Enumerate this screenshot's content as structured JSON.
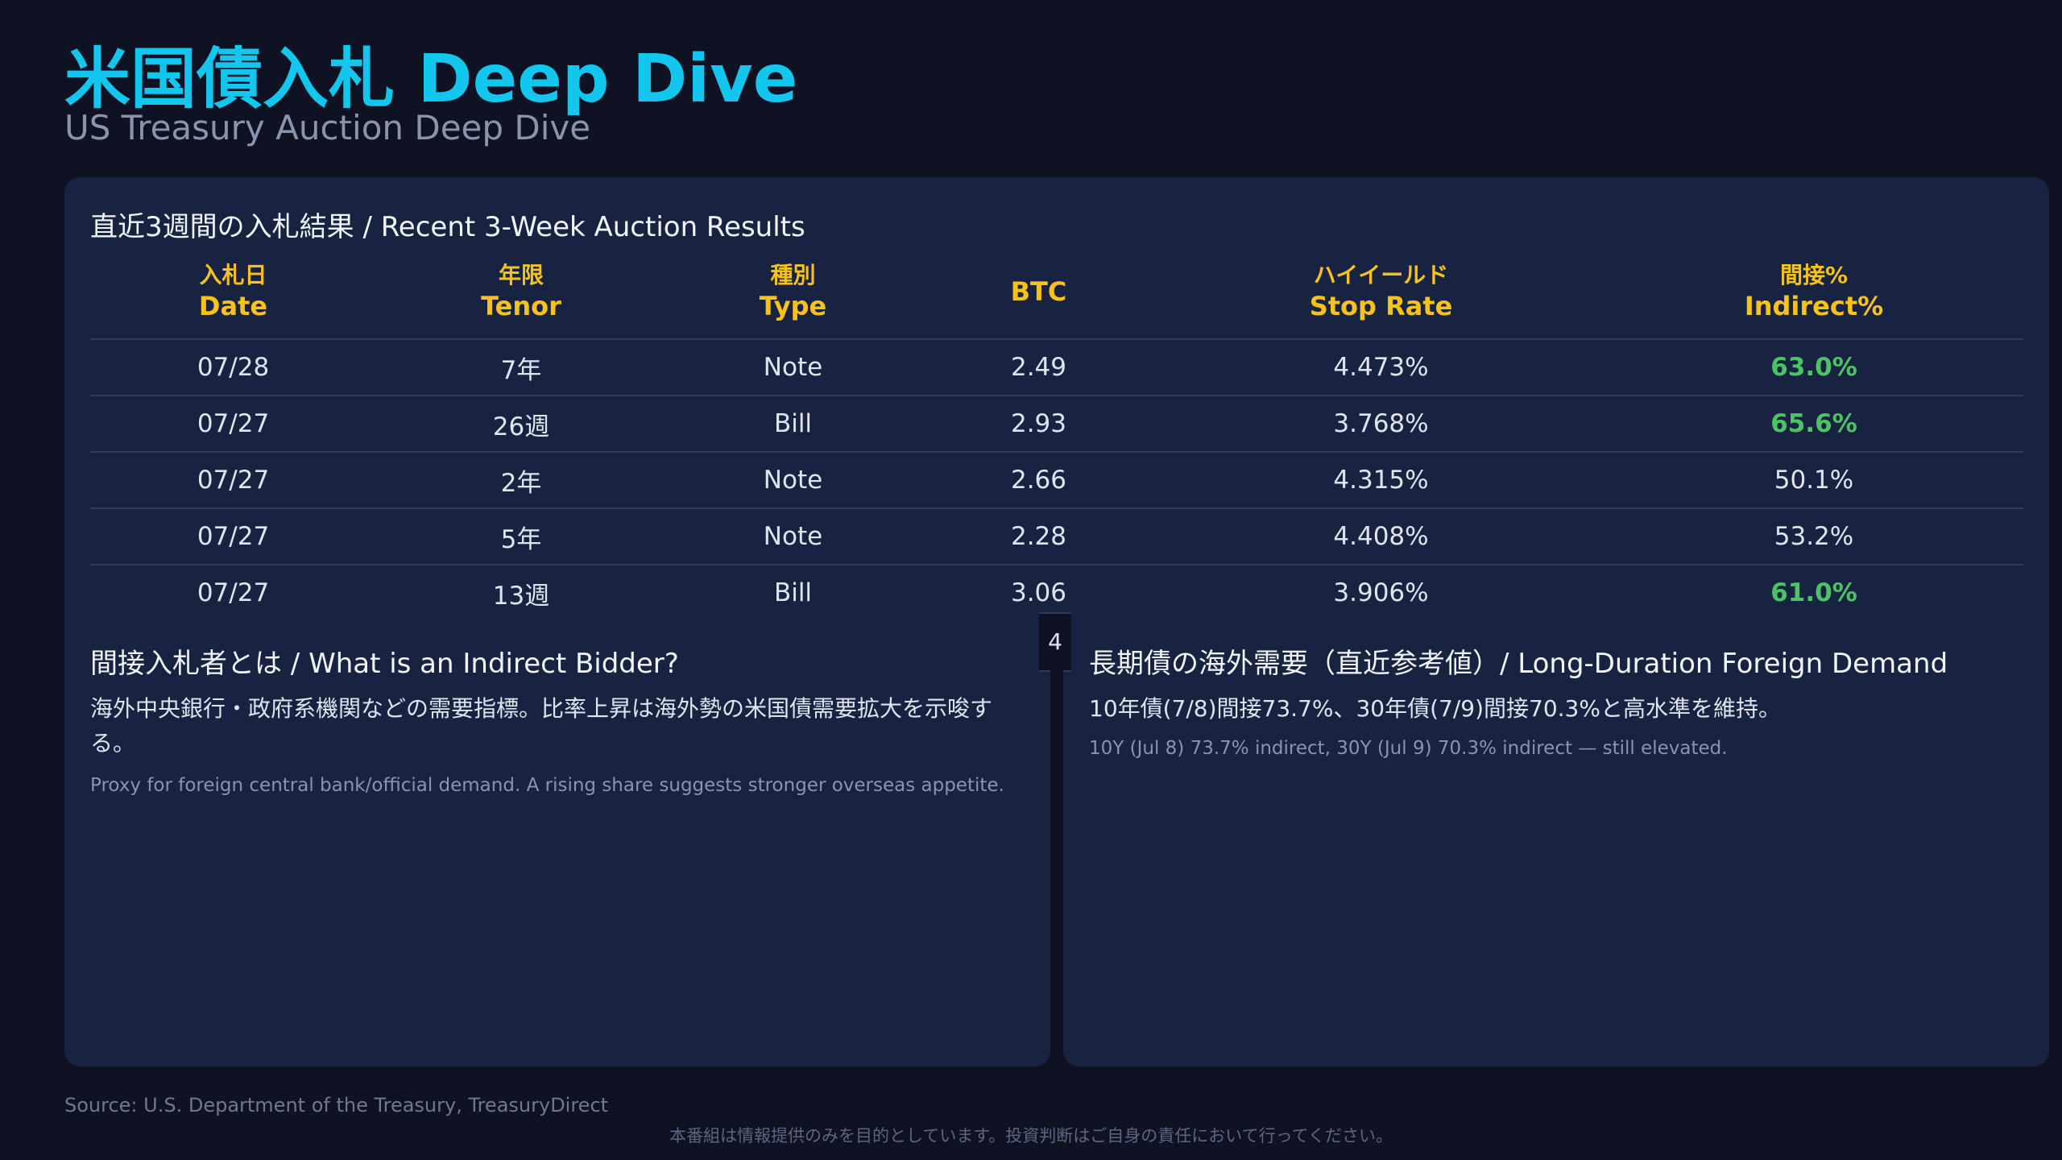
{
  "header": {
    "title": "米国債入札 Deep Dive",
    "subtitle": "US Treasury Auction Deep Dive"
  },
  "auction_table": {
    "heading": "直近3週間の入札結果 / Recent 3-Week Auction Results",
    "columns": [
      {
        "jp": "入札日",
        "en": "Date"
      },
      {
        "jp": "年限",
        "en": "Tenor"
      },
      {
        "jp": "種別",
        "en": "Type"
      },
      {
        "jp": "",
        "en": "BTC"
      },
      {
        "jp": "ハイイールド",
        "en": "Stop Rate"
      },
      {
        "jp": "間接%",
        "en": "Indirect%"
      }
    ],
    "rows": [
      {
        "date": "07/28",
        "tenor": "7年",
        "type": "Note",
        "btc": "2.49",
        "stop_rate": "4.473%",
        "indirect": "63.0%",
        "indirect_highlight": true
      },
      {
        "date": "07/27",
        "tenor": "26週",
        "type": "Bill",
        "btc": "2.93",
        "stop_rate": "3.768%",
        "indirect": "65.6%",
        "indirect_highlight": true
      },
      {
        "date": "07/27",
        "tenor": "2年",
        "type": "Note",
        "btc": "2.66",
        "stop_rate": "4.315%",
        "indirect": "50.1%",
        "indirect_highlight": false
      },
      {
        "date": "07/27",
        "tenor": "5年",
        "type": "Note",
        "btc": "2.28",
        "stop_rate": "4.408%",
        "indirect": "53.2%",
        "indirect_highlight": false
      },
      {
        "date": "07/27",
        "tenor": "13週",
        "type": "Bill",
        "btc": "3.06",
        "stop_rate": "3.906%",
        "indirect": "61.0%",
        "indirect_highlight": true
      }
    ],
    "highlight_color": "#4cc464",
    "header_color": "#f7c21a"
  },
  "page_marker": "4",
  "indirect_bidder": {
    "heading": "間接入札者とは / What is an Indirect Bidder?",
    "body_jp": "海外中央銀行・政府系機関などの需要指標。比率上昇は海外勢の米国債需要拡大を示唆する。",
    "body_en": "Proxy for foreign central bank/official demand. A rising share suggests stronger overseas appetite."
  },
  "foreign_demand": {
    "heading": "長期債の海外需要（直近参考値）/ Long-Duration Foreign Demand",
    "body_jp": "10年債(7/8)間接73.7%、30年債(7/9)間接70.3%と高水準を維持。",
    "body_en": "10Y (Jul 8) 73.7% indirect, 30Y (Jul 9) 70.3% indirect — still elevated."
  },
  "footer": {
    "source": "Source: U.S. Department of the Treasury, TreasuryDirect",
    "disclaimer": "本番組は情報提供のみを目的としています。投資判断はご自身の責任において行ってください。"
  },
  "colors": {
    "title": "#12c6ee",
    "background": "#0e1222",
    "panel": "#172340"
  }
}
